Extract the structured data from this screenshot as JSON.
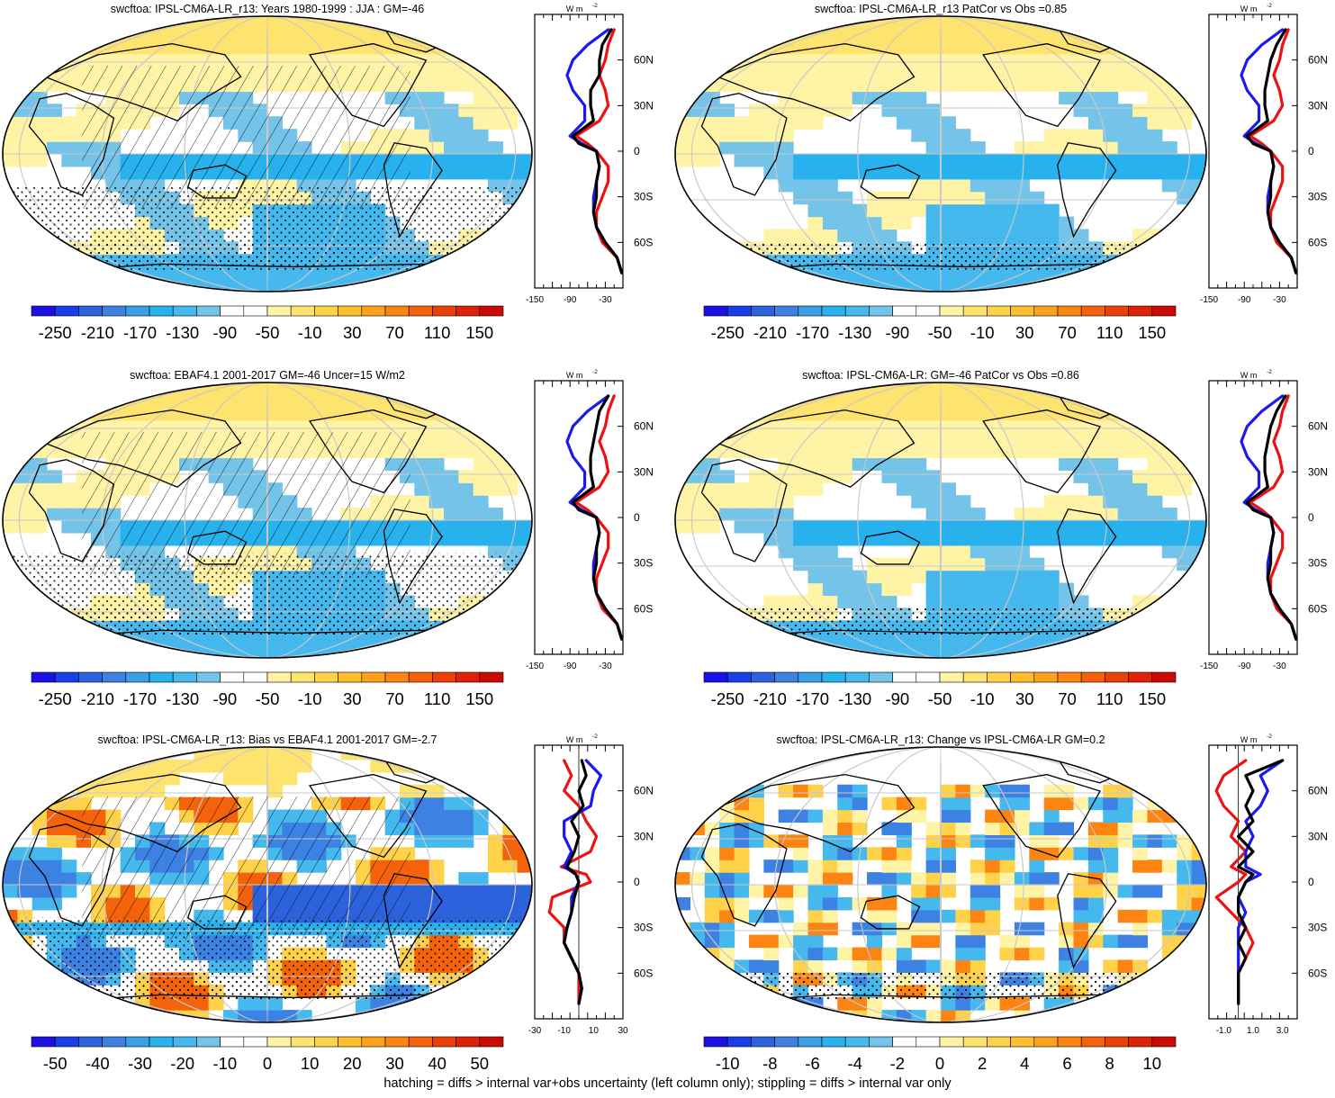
{
  "footnote": "hatching = diffs > internal var+obs uncertainty (left column only); stippling = diffs > internal var only",
  "units_label": "W m",
  "units_sup": "-2",
  "colors": {
    "model_line": "#000000",
    "obs_line": "#1a1aee",
    "other_line": "#ee1111",
    "land_outline": "#000000",
    "graticule": "#c8c8c8"
  },
  "palettes": {
    "diverging_25": [
      "#1c10e4",
      "#1a3fe8",
      "#2d62dd",
      "#3d82e3",
      "#3b9fe6",
      "#27b2ee",
      "#45b8ee",
      "#74c4ea",
      "#ffffff",
      "#ffffff",
      "#fff3a6",
      "#ffe36f",
      "#ffd24a",
      "#ffbe2e",
      "#ffa11c",
      "#fb8412",
      "#f4630c",
      "#ea4109",
      "#df2207",
      "#cc0a04"
    ],
    "diverging_bias": [
      "#1c10e4",
      "#1a3fe8",
      "#2d62dd",
      "#3d82e3",
      "#3b9fe6",
      "#27b2ee",
      "#45b8ee",
      "#74c4ea",
      "#ffffff",
      "#ffffff",
      "#fff3a6",
      "#ffe36f",
      "#ffd24a",
      "#ffbe2e",
      "#ffa11c",
      "#fb8412",
      "#f4630c",
      "#ea4109",
      "#df2207",
      "#cc0a04"
    ],
    "diverging_change": [
      "#1c10e4",
      "#1a3fe8",
      "#2d62dd",
      "#3d82e3",
      "#3b9fe6",
      "#27b2ee",
      "#45b8ee",
      "#74c4ea",
      "#ffffff",
      "#ffffff",
      "#fff3a6",
      "#ffe36f",
      "#ffd24a",
      "#ffbe2e",
      "#ffa11c",
      "#fb8412",
      "#f4630c",
      "#ea4109",
      "#df2207",
      "#cc0a04"
    ]
  },
  "chart_data": [
    {
      "type": "heatmap",
      "panel": "top-left",
      "title": "swcftoa: IPSL-CM6A-LR_r13: Years 1980-1999 : JJA : GM=-46",
      "colorbar_ticks": [
        "-250",
        "-210",
        "-170",
        "-130",
        "-90",
        "-50",
        "-10",
        "30",
        "70",
        "110",
        "150"
      ],
      "field": "climatology",
      "hatching": true,
      "stippling": true,
      "zonal_mean": {
        "xticks": [
          "-150",
          "-90",
          "-30"
        ],
        "xlim": [
          -150,
          0
        ],
        "lat_ticks": [
          "60N",
          "30N",
          "0",
          "30S",
          "60S"
        ],
        "lat": [
          80,
          70,
          60,
          50,
          40,
          30,
          20,
          10,
          5,
          0,
          -10,
          -20,
          -30,
          -40,
          -50,
          -60,
          -70,
          -80
        ],
        "series": [
          {
            "name": "model",
            "values": [
              -20,
              -35,
              -40,
              -40,
              -55,
              -55,
              -50,
              -85,
              -75,
              -45,
              -40,
              -45,
              -45,
              -50,
              -45,
              -30,
              -10,
              -2
            ]
          },
          {
            "name": "obs",
            "values": [
              -25,
              -60,
              -85,
              -95,
              -85,
              -65,
              -65,
              -90,
              -70,
              -45,
              -40,
              -45,
              -50,
              -50,
              -45,
              -30,
              -10,
              -2
            ]
          },
          {
            "name": "other",
            "values": [
              -15,
              -25,
              -30,
              -40,
              -30,
              -25,
              -40,
              -80,
              -60,
              -45,
              -25,
              -25,
              -35,
              -45,
              -45,
              -35,
              -10,
              -2
            ]
          }
        ]
      }
    },
    {
      "type": "heatmap",
      "panel": "top-right",
      "title": "swcftoa: IPSL-CM6A-LR_r13 PatCor vs Obs =0.85",
      "colorbar_ticks": [
        "-250",
        "-210",
        "-170",
        "-130",
        "-90",
        "-50",
        "-10",
        "30",
        "70",
        "110",
        "150"
      ],
      "field": "climatology",
      "hatching": false,
      "stippling": true,
      "zonal_mean": {
        "xticks": [
          "-150",
          "-90",
          "-30"
        ],
        "xlim": [
          -150,
          0
        ],
        "lat_ticks": [
          "60N",
          "30N",
          "0",
          "30S",
          "60S"
        ],
        "lat": [
          80,
          70,
          60,
          50,
          40,
          30,
          20,
          10,
          5,
          0,
          -10,
          -20,
          -30,
          -40,
          -50,
          -60,
          -70,
          -80
        ],
        "series": [
          {
            "name": "model",
            "values": [
              -20,
              -35,
              -45,
              -50,
              -55,
              -55,
              -50,
              -85,
              -75,
              -45,
              -40,
              -45,
              -45,
              -50,
              -45,
              -30,
              -10,
              -2
            ]
          },
          {
            "name": "obs",
            "values": [
              -25,
              -60,
              -85,
              -95,
              -85,
              -65,
              -65,
              -90,
              -70,
              -45,
              -40,
              -45,
              -50,
              -50,
              -45,
              -30,
              -10,
              -2
            ]
          },
          {
            "name": "other",
            "values": [
              -15,
              -25,
              -30,
              -40,
              -30,
              -25,
              -40,
              -80,
              -60,
              -45,
              -25,
              -25,
              -35,
              -45,
              -45,
              -35,
              -10,
              -2
            ]
          }
        ]
      }
    },
    {
      "type": "heatmap",
      "panel": "middle-left",
      "title": "swcftoa: EBAF4.1 2001-2017 GM=-46 Uncer=15 W/m2",
      "colorbar_ticks": [
        "-250",
        "-210",
        "-170",
        "-130",
        "-90",
        "-50",
        "-10",
        "30",
        "70",
        "110",
        "150"
      ],
      "field": "climatology",
      "hatching": true,
      "stippling": true,
      "zonal_mean": {
        "xticks": [
          "-150",
          "-90",
          "-30"
        ],
        "xlim": [
          -150,
          0
        ],
        "lat_ticks": [
          "60N",
          "30N",
          "0",
          "30S",
          "60S"
        ],
        "lat": [
          80,
          70,
          60,
          50,
          40,
          30,
          20,
          10,
          5,
          0,
          -10,
          -20,
          -30,
          -40,
          -50,
          -60,
          -70,
          -80
        ],
        "series": [
          {
            "name": "model",
            "values": [
              -25,
              -40,
              -45,
              -50,
              -55,
              -55,
              -50,
              -85,
              -75,
              -45,
              -40,
              -45,
              -45,
              -50,
              -45,
              -30,
              -10,
              -2
            ]
          },
          {
            "name": "obs",
            "values": [
              -25,
              -60,
              -85,
              -95,
              -85,
              -65,
              -65,
              -90,
              -70,
              -45,
              -40,
              -45,
              -50,
              -50,
              -45,
              -30,
              -10,
              -2
            ]
          },
          {
            "name": "other",
            "values": [
              -15,
              -25,
              -30,
              -40,
              -30,
              -25,
              -40,
              -80,
              -60,
              -45,
              -25,
              -25,
              -35,
              -45,
              -45,
              -35,
              -10,
              -2
            ]
          }
        ]
      }
    },
    {
      "type": "heatmap",
      "panel": "middle-right",
      "title": "swcftoa: IPSL-CM6A-LR: GM=-46 PatCor vs Obs =0.86",
      "colorbar_ticks": [
        "-250",
        "-210",
        "-170",
        "-130",
        "-90",
        "-50",
        "-10",
        "30",
        "70",
        "110",
        "150"
      ],
      "field": "climatology",
      "hatching": false,
      "stippling": true,
      "zonal_mean": {
        "xticks": [
          "-150",
          "-90",
          "-30"
        ],
        "xlim": [
          -150,
          0
        ],
        "lat_ticks": [
          "60N",
          "30N",
          "0",
          "30S",
          "60S"
        ],
        "lat": [
          80,
          70,
          60,
          50,
          40,
          30,
          20,
          10,
          5,
          0,
          -10,
          -20,
          -30,
          -40,
          -50,
          -60,
          -70,
          -80
        ],
        "series": [
          {
            "name": "model",
            "values": [
              -20,
              -35,
              -45,
              -50,
              -55,
              -55,
              -50,
              -85,
              -75,
              -45,
              -40,
              -45,
              -45,
              -50,
              -45,
              -30,
              -10,
              -2
            ]
          },
          {
            "name": "obs",
            "values": [
              -25,
              -60,
              -85,
              -95,
              -85,
              -65,
              -65,
              -90,
              -70,
              -45,
              -40,
              -45,
              -50,
              -50,
              -45,
              -30,
              -10,
              -2
            ]
          },
          {
            "name": "other",
            "values": [
              -15,
              -25,
              -30,
              -40,
              -30,
              -25,
              -40,
              -80,
              -60,
              -45,
              -25,
              -25,
              -35,
              -45,
              -45,
              -35,
              -10,
              -2
            ]
          }
        ]
      }
    },
    {
      "type": "heatmap",
      "panel": "bottom-left",
      "title": "swcftoa: IPSL-CM6A-LR_r13: Bias vs EBAF4.1 2001-2017 GM=-2.7",
      "colorbar_ticks": [
        "-50",
        "-40",
        "-30",
        "-20",
        "-10",
        "0",
        "10",
        "20",
        "30",
        "40",
        "50"
      ],
      "field": "bias",
      "hatching": true,
      "stippling": true,
      "zonal_mean": {
        "xticks": [
          "-30",
          "-10",
          "10",
          "30"
        ],
        "xlim": [
          -30,
          30
        ],
        "lat_ticks": [
          "60N",
          "30N",
          "0",
          "30S",
          "60S"
        ],
        "lat": [
          80,
          70,
          60,
          50,
          40,
          30,
          20,
          10,
          5,
          0,
          -10,
          -20,
          -30,
          -40,
          -50,
          -60,
          -70,
          -80
        ],
        "series": [
          {
            "name": "model",
            "values": [
              2,
              5,
              0,
              3,
              -5,
              0,
              -3,
              -8,
              -2,
              0,
              -3,
              -5,
              -8,
              -10,
              -5,
              0,
              2,
              0
            ]
          },
          {
            "name": "obs",
            "values": [
              5,
              15,
              10,
              8,
              -10,
              -10,
              -5,
              -10,
              -2,
              0,
              -5,
              -5,
              -8,
              -10,
              -5,
              0,
              2,
              0
            ]
          },
          {
            "name": "other",
            "values": [
              -10,
              -5,
              -10,
              0,
              5,
              12,
              8,
              -12,
              5,
              8,
              -18,
              -20,
              -10,
              -10,
              -5,
              0,
              0,
              0
            ]
          }
        ]
      }
    },
    {
      "type": "heatmap",
      "panel": "bottom-right",
      "title": "swcftoa: IPSL-CM6A-LR_r13: Change vs IPSL-CM6A-LR GM=0.2",
      "colorbar_ticks": [
        "-10",
        "-8",
        "-6",
        "-4",
        "-2",
        "0",
        "2",
        "4",
        "6",
        "8",
        "10"
      ],
      "field": "change",
      "hatching": false,
      "stippling": true,
      "zonal_mean": {
        "xticks": [
          "-1.0",
          "1.0",
          "3.0"
        ],
        "xlim": [
          -2,
          4
        ],
        "lat_ticks": [
          "60N",
          "30N",
          "0",
          "30S",
          "60S"
        ],
        "lat": [
          80,
          70,
          60,
          50,
          40,
          30,
          20,
          10,
          5,
          0,
          -10,
          -20,
          -30,
          -40,
          -50,
          -60,
          -70,
          -80
        ],
        "series": [
          {
            "name": "model",
            "values": [
              3,
              0.5,
              1,
              0.5,
              1,
              0,
              1,
              0,
              1,
              0.5,
              0,
              0,
              0.5,
              0,
              0.5,
              0,
              0,
              0
            ]
          },
          {
            "name": "obs",
            "values": [
              3,
              1.5,
              2,
              1.5,
              0.5,
              1,
              0.5,
              0.5,
              1.5,
              0.5,
              0,
              0.5,
              0,
              0,
              0,
              0,
              0,
              0
            ]
          },
          {
            "name": "other",
            "values": [
              0.5,
              -1,
              -1.5,
              -1,
              0,
              -0.5,
              0.5,
              -0.5,
              0.5,
              0,
              -1.5,
              -0.5,
              0.5,
              1,
              0.5,
              0,
              0,
              0
            ]
          }
        ]
      }
    }
  ]
}
